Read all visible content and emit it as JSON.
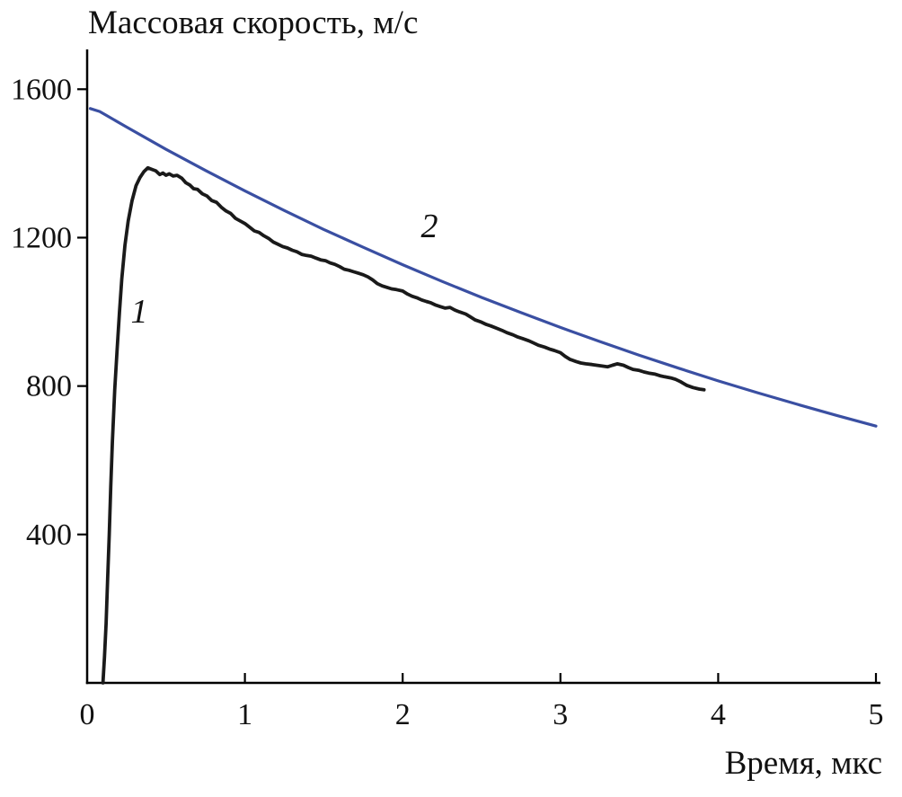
{
  "chart_data": {
    "type": "line",
    "title": "Массовая скорость, м/с",
    "xlabel": "Время, мкс",
    "ylabel": "Массовая скорость, м/с",
    "xlim": [
      0,
      5
    ],
    "ylim": [
      0,
      1700
    ],
    "grid": false,
    "legend": "none",
    "axis_color": "#000000",
    "xticks": {
      "values": [
        0,
        1,
        2,
        3,
        4,
        5
      ],
      "labels": [
        "0",
        "1",
        "2",
        "3",
        "4",
        "5"
      ]
    },
    "yticks": {
      "values": [
        400,
        800,
        1200,
        1600
      ],
      "labels": [
        "400",
        "800",
        "1200",
        "1600"
      ]
    },
    "annotations": [
      {
        "text": "1",
        "x": 0.33,
        "y": 1000
      },
      {
        "text": "2",
        "x": 2.17,
        "y": 1230
      }
    ],
    "series": [
      {
        "name": "1",
        "description": "experimental mass velocity profile",
        "color": "#1a1a1a",
        "width": 3.8,
        "points": [
          [
            0.1,
            0
          ],
          [
            0.11,
            70
          ],
          [
            0.12,
            160
          ],
          [
            0.13,
            280
          ],
          [
            0.14,
            400
          ],
          [
            0.15,
            530
          ],
          [
            0.16,
            650
          ],
          [
            0.175,
            790
          ],
          [
            0.19,
            900
          ],
          [
            0.205,
            1000
          ],
          [
            0.22,
            1090
          ],
          [
            0.24,
            1180
          ],
          [
            0.26,
            1245
          ],
          [
            0.285,
            1300
          ],
          [
            0.31,
            1340
          ],
          [
            0.335,
            1362
          ],
          [
            0.36,
            1378
          ],
          [
            0.385,
            1388
          ],
          [
            0.41,
            1384
          ],
          [
            0.435,
            1380
          ],
          [
            0.46,
            1370
          ],
          [
            0.48,
            1374
          ],
          [
            0.5,
            1368
          ],
          [
            0.52,
            1372
          ],
          [
            0.545,
            1366
          ],
          [
            0.57,
            1368
          ],
          [
            0.6,
            1360
          ],
          [
            0.625,
            1348
          ],
          [
            0.65,
            1342
          ],
          [
            0.675,
            1332
          ],
          [
            0.7,
            1330
          ],
          [
            0.73,
            1318
          ],
          [
            0.76,
            1312
          ],
          [
            0.79,
            1300
          ],
          [
            0.82,
            1295
          ],
          [
            0.85,
            1282
          ],
          [
            0.88,
            1272
          ],
          [
            0.91,
            1265
          ],
          [
            0.94,
            1252
          ],
          [
            0.97,
            1245
          ],
          [
            1.0,
            1238
          ],
          [
            1.03,
            1228
          ],
          [
            1.06,
            1218
          ],
          [
            1.09,
            1214
          ],
          [
            1.12,
            1205
          ],
          [
            1.15,
            1198
          ],
          [
            1.18,
            1188
          ],
          [
            1.21,
            1182
          ],
          [
            1.24,
            1176
          ],
          [
            1.27,
            1172
          ],
          [
            1.3,
            1166
          ],
          [
            1.33,
            1162
          ],
          [
            1.36,
            1155
          ],
          [
            1.39,
            1152
          ],
          [
            1.42,
            1150
          ],
          [
            1.45,
            1145
          ],
          [
            1.48,
            1140
          ],
          [
            1.51,
            1138
          ],
          [
            1.54,
            1132
          ],
          [
            1.57,
            1128
          ],
          [
            1.6,
            1122
          ],
          [
            1.63,
            1115
          ],
          [
            1.66,
            1112
          ],
          [
            1.69,
            1108
          ],
          [
            1.72,
            1104
          ],
          [
            1.75,
            1100
          ],
          [
            1.78,
            1094
          ],
          [
            1.81,
            1086
          ],
          [
            1.84,
            1076
          ],
          [
            1.87,
            1070
          ],
          [
            1.9,
            1066
          ],
          [
            1.93,
            1062
          ],
          [
            1.96,
            1060
          ],
          [
            2.0,
            1056
          ],
          [
            2.03,
            1048
          ],
          [
            2.06,
            1042
          ],
          [
            2.09,
            1038
          ],
          [
            2.12,
            1032
          ],
          [
            2.15,
            1028
          ],
          [
            2.18,
            1024
          ],
          [
            2.21,
            1018
          ],
          [
            2.24,
            1014
          ],
          [
            2.27,
            1010
          ],
          [
            2.3,
            1012
          ],
          [
            2.33,
            1005
          ],
          [
            2.36,
            1000
          ],
          [
            2.4,
            994
          ],
          [
            2.43,
            986
          ],
          [
            2.46,
            978
          ],
          [
            2.5,
            972
          ],
          [
            2.53,
            966
          ],
          [
            2.56,
            962
          ],
          [
            2.6,
            955
          ],
          [
            2.63,
            950
          ],
          [
            2.66,
            944
          ],
          [
            2.7,
            938
          ],
          [
            2.73,
            932
          ],
          [
            2.76,
            928
          ],
          [
            2.8,
            922
          ],
          [
            2.83,
            916
          ],
          [
            2.86,
            910
          ],
          [
            2.9,
            905
          ],
          [
            2.93,
            900
          ],
          [
            2.96,
            896
          ],
          [
            3.0,
            890
          ],
          [
            3.03,
            880
          ],
          [
            3.06,
            872
          ],
          [
            3.1,
            866
          ],
          [
            3.13,
            862
          ],
          [
            3.16,
            860
          ],
          [
            3.2,
            858
          ],
          [
            3.23,
            856
          ],
          [
            3.26,
            854
          ],
          [
            3.3,
            852
          ],
          [
            3.33,
            856
          ],
          [
            3.36,
            860
          ],
          [
            3.4,
            856
          ],
          [
            3.43,
            850
          ],
          [
            3.46,
            845
          ],
          [
            3.5,
            842
          ],
          [
            3.53,
            838
          ],
          [
            3.56,
            835
          ],
          [
            3.6,
            832
          ],
          [
            3.63,
            828
          ],
          [
            3.66,
            825
          ],
          [
            3.7,
            822
          ],
          [
            3.73,
            818
          ],
          [
            3.76,
            812
          ],
          [
            3.8,
            802
          ],
          [
            3.84,
            796
          ],
          [
            3.88,
            792
          ],
          [
            3.91,
            790
          ]
        ]
      },
      {
        "name": "2",
        "description": "smooth calculated curve",
        "color": "#3a4fa2",
        "width": 3.2,
        "points": [
          [
            0.02,
            1548
          ],
          [
            0.08,
            1540
          ],
          [
            0.25,
            1498
          ],
          [
            0.5,
            1438
          ],
          [
            0.75,
            1381
          ],
          [
            1.0,
            1326
          ],
          [
            1.25,
            1273
          ],
          [
            1.5,
            1222
          ],
          [
            1.75,
            1174
          ],
          [
            2.0,
            1127
          ],
          [
            2.25,
            1082
          ],
          [
            2.5,
            1039
          ],
          [
            2.75,
            998
          ],
          [
            3.0,
            958
          ],
          [
            3.25,
            920
          ],
          [
            3.5,
            883
          ],
          [
            3.75,
            848
          ],
          [
            4.0,
            814
          ],
          [
            4.25,
            782
          ],
          [
            4.5,
            751
          ],
          [
            4.75,
            721
          ],
          [
            5.0,
            692
          ]
        ]
      }
    ]
  }
}
